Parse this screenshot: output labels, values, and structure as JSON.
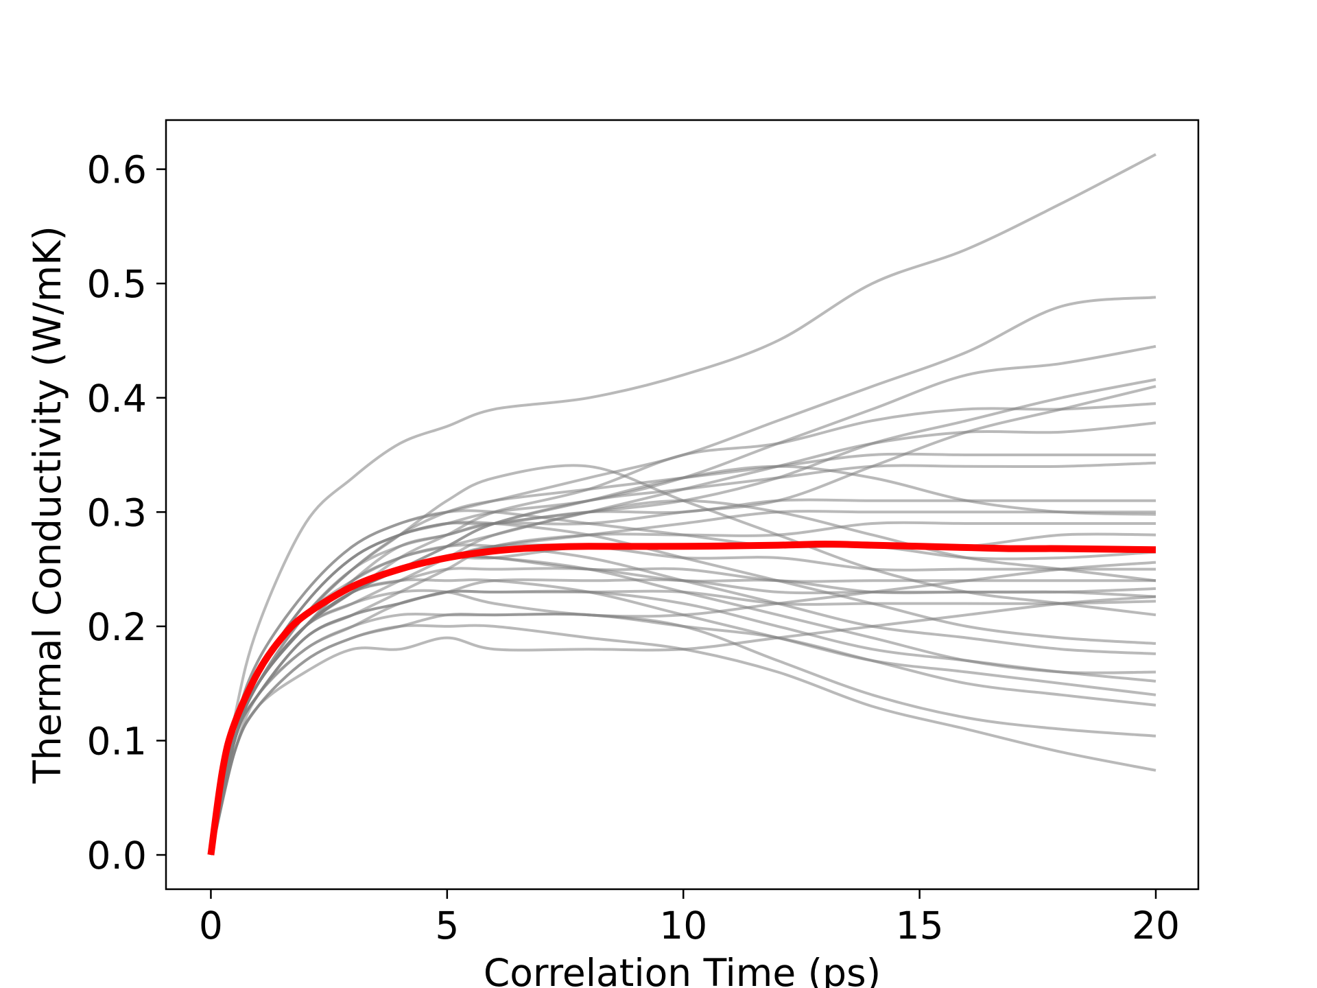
{
  "chart_data": {
    "type": "line",
    "title": "",
    "xlabel": "Correlation Time (ps)",
    "ylabel": "Thermal Conductivity (W/mK)",
    "xlim": [
      -0.95,
      20.9
    ],
    "ylim": [
      -0.03,
      0.643
    ],
    "xticks": [
      0,
      5,
      10,
      15,
      20
    ],
    "xtick_labels": [
      "0",
      "5",
      "10",
      "15",
      "20"
    ],
    "yticks": [
      0.0,
      0.1,
      0.2,
      0.3,
      0.4,
      0.5,
      0.6
    ],
    "ytick_labels": [
      "0.0",
      "0.1",
      "0.2",
      "0.3",
      "0.4",
      "0.5",
      "0.6"
    ],
    "grid": false,
    "legend": "none",
    "colors": {
      "individual": "#808080",
      "average": "#ff0000"
    },
    "x": [
      0,
      0.5,
      1,
      2,
      3,
      4,
      5,
      6,
      8,
      10,
      12,
      14,
      16,
      18,
      20
    ],
    "series": [
      {
        "values": [
          0,
          0.12,
          0.2,
          0.29,
          0.33,
          0.36,
          0.375,
          0.39,
          0.4,
          0.42,
          0.45,
          0.5,
          0.53,
          0.57,
          0.613
        ]
      },
      {
        "values": [
          0,
          0.11,
          0.17,
          0.23,
          0.27,
          0.29,
          0.3,
          0.31,
          0.33,
          0.35,
          0.38,
          0.41,
          0.44,
          0.48,
          0.488
        ]
      },
      {
        "values": [
          0,
          0.11,
          0.16,
          0.22,
          0.26,
          0.28,
          0.29,
          0.3,
          0.31,
          0.33,
          0.36,
          0.39,
          0.42,
          0.43,
          0.445
        ]
      },
      {
        "values": [
          0,
          0.1,
          0.15,
          0.21,
          0.25,
          0.27,
          0.28,
          0.29,
          0.3,
          0.31,
          0.33,
          0.36,
          0.38,
          0.4,
          0.416
        ]
      },
      {
        "values": [
          0,
          0.1,
          0.15,
          0.2,
          0.24,
          0.27,
          0.28,
          0.29,
          0.29,
          0.3,
          0.31,
          0.34,
          0.37,
          0.39,
          0.41
        ]
      },
      {
        "values": [
          0,
          0.1,
          0.15,
          0.2,
          0.23,
          0.26,
          0.28,
          0.3,
          0.32,
          0.35,
          0.36,
          0.38,
          0.39,
          0.39,
          0.395
        ]
      },
      {
        "values": [
          0,
          0.1,
          0.15,
          0.2,
          0.22,
          0.24,
          0.26,
          0.28,
          0.3,
          0.32,
          0.34,
          0.36,
          0.37,
          0.37,
          0.378
        ]
      },
      {
        "values": [
          0,
          0.11,
          0.16,
          0.21,
          0.25,
          0.28,
          0.3,
          0.31,
          0.32,
          0.33,
          0.34,
          0.35,
          0.35,
          0.35,
          0.35
        ]
      },
      {
        "values": [
          0,
          0.1,
          0.15,
          0.2,
          0.23,
          0.25,
          0.27,
          0.29,
          0.31,
          0.32,
          0.33,
          0.34,
          0.34,
          0.34,
          0.343
        ]
      },
      {
        "values": [
          0,
          0.11,
          0.16,
          0.22,
          0.26,
          0.28,
          0.29,
          0.29,
          0.3,
          0.3,
          0.31,
          0.31,
          0.31,
          0.31,
          0.31
        ]
      },
      {
        "values": [
          0,
          0.1,
          0.15,
          0.2,
          0.23,
          0.25,
          0.26,
          0.27,
          0.28,
          0.29,
          0.3,
          0.3,
          0.3,
          0.3,
          0.3
        ]
      },
      {
        "values": [
          0,
          0.1,
          0.14,
          0.19,
          0.21,
          0.23,
          0.25,
          0.27,
          0.28,
          0.28,
          0.28,
          0.29,
          0.29,
          0.29,
          0.29
        ]
      },
      {
        "values": [
          0,
          0.1,
          0.15,
          0.2,
          0.23,
          0.25,
          0.26,
          0.26,
          0.27,
          0.27,
          0.27,
          0.27,
          0.27,
          0.28,
          0.28
        ]
      },
      {
        "values": [
          0,
          0.11,
          0.17,
          0.23,
          0.27,
          0.29,
          0.3,
          0.3,
          0.29,
          0.28,
          0.27,
          0.27,
          0.26,
          0.26,
          0.265
        ]
      },
      {
        "values": [
          0,
          0.1,
          0.15,
          0.2,
          0.23,
          0.25,
          0.26,
          0.27,
          0.27,
          0.26,
          0.26,
          0.25,
          0.25,
          0.25,
          0.25
        ]
      },
      {
        "values": [
          0,
          0.1,
          0.15,
          0.2,
          0.23,
          0.25,
          0.26,
          0.26,
          0.25,
          0.25,
          0.24,
          0.24,
          0.24,
          0.24,
          0.24
        ]
      },
      {
        "values": [
          0,
          0.09,
          0.14,
          0.18,
          0.2,
          0.22,
          0.23,
          0.24,
          0.24,
          0.24,
          0.23,
          0.23,
          0.23,
          0.23,
          0.233
        ]
      },
      {
        "values": [
          0,
          0.1,
          0.15,
          0.2,
          0.23,
          0.24,
          0.25,
          0.25,
          0.25,
          0.24,
          0.24,
          0.23,
          0.23,
          0.23,
          0.226
        ]
      },
      {
        "values": [
          0,
          0.1,
          0.14,
          0.19,
          0.21,
          0.22,
          0.23,
          0.23,
          0.23,
          0.23,
          0.22,
          0.22,
          0.22,
          0.22,
          0.222
        ]
      },
      {
        "values": [
          0,
          0.11,
          0.16,
          0.22,
          0.26,
          0.28,
          0.29,
          0.29,
          0.28,
          0.26,
          0.24,
          0.22,
          0.2,
          0.19,
          0.185
        ]
      },
      {
        "values": [
          0,
          0.1,
          0.15,
          0.2,
          0.24,
          0.26,
          0.27,
          0.27,
          0.26,
          0.24,
          0.22,
          0.2,
          0.19,
          0.18,
          0.176
        ]
      },
      {
        "values": [
          0,
          0.1,
          0.15,
          0.2,
          0.23,
          0.25,
          0.26,
          0.26,
          0.25,
          0.23,
          0.21,
          0.19,
          0.17,
          0.16,
          0.16
        ]
      },
      {
        "values": [
          0,
          0.1,
          0.14,
          0.19,
          0.21,
          0.22,
          0.23,
          0.23,
          0.23,
          0.22,
          0.2,
          0.18,
          0.17,
          0.16,
          0.152
        ]
      },
      {
        "values": [
          0,
          0.1,
          0.15,
          0.2,
          0.23,
          0.24,
          0.24,
          0.24,
          0.23,
          0.21,
          0.19,
          0.17,
          0.16,
          0.15,
          0.14
        ]
      },
      {
        "values": [
          0,
          0.09,
          0.13,
          0.17,
          0.19,
          0.2,
          0.21,
          0.21,
          0.21,
          0.2,
          0.19,
          0.17,
          0.15,
          0.14,
          0.131
        ]
      },
      {
        "values": [
          0,
          0.1,
          0.14,
          0.18,
          0.2,
          0.21,
          0.21,
          0.21,
          0.21,
          0.2,
          0.17,
          0.14,
          0.12,
          0.11,
          0.104
        ]
      },
      {
        "values": [
          0,
          0.09,
          0.13,
          0.17,
          0.19,
          0.2,
          0.2,
          0.2,
          0.19,
          0.18,
          0.16,
          0.13,
          0.11,
          0.09,
          0.074
        ]
      },
      {
        "values": [
          0,
          0.09,
          0.13,
          0.16,
          0.18,
          0.18,
          0.19,
          0.18,
          0.18,
          0.18,
          0.19,
          0.2,
          0.21,
          0.22,
          0.226
        ]
      },
      {
        "values": [
          0,
          0.1,
          0.15,
          0.2,
          0.22,
          0.23,
          0.23,
          0.22,
          0.21,
          0.21,
          0.22,
          0.23,
          0.24,
          0.25,
          0.256
        ]
      },
      {
        "values": [
          0,
          0.11,
          0.16,
          0.21,
          0.24,
          0.26,
          0.27,
          0.28,
          0.3,
          0.31,
          0.3,
          0.28,
          0.26,
          0.25,
          0.24
        ]
      },
      {
        "values": [
          0,
          0.1,
          0.15,
          0.21,
          0.25,
          0.28,
          0.31,
          0.33,
          0.34,
          0.31,
          0.28,
          0.25,
          0.23,
          0.22,
          0.21
        ]
      },
      {
        "values": [
          0,
          0.1,
          0.15,
          0.2,
          0.23,
          0.25,
          0.27,
          0.29,
          0.31,
          0.33,
          0.34,
          0.33,
          0.31,
          0.3,
          0.298
        ]
      }
    ],
    "average": {
      "x": [
        0,
        0.25,
        0.5,
        1,
        1.5,
        2,
        3,
        4,
        5,
        6,
        7,
        8,
        10,
        12,
        13,
        14,
        16,
        17,
        18,
        20
      ],
      "values": [
        0,
        0.075,
        0.115,
        0.16,
        0.19,
        0.21,
        0.235,
        0.25,
        0.26,
        0.266,
        0.269,
        0.27,
        0.27,
        0.271,
        0.272,
        0.271,
        0.269,
        0.268,
        0.268,
        0.267
      ]
    }
  }
}
